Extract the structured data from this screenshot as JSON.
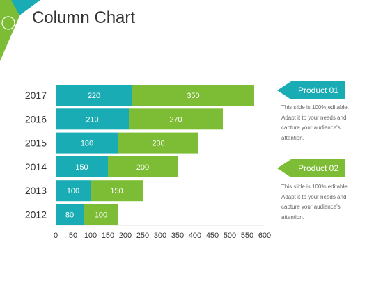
{
  "slide": {
    "title": "Column Chart",
    "accent_teal": "#1aacb5",
    "accent_green": "#7cbd35"
  },
  "callouts": [
    {
      "label": "Product 01",
      "color": "#1aacb5",
      "description": [
        "This slide is 100% editable.",
        "Adapt it to your needs and",
        "capture your audience's",
        "attention."
      ]
    },
    {
      "label": "Product 02",
      "color": "#7cbd35",
      "description": [
        "This slide is 100% editable.",
        "Adapt it to your needs and",
        "capture your audience's",
        "attention."
      ]
    }
  ],
  "chart_data": {
    "type": "bar",
    "orientation": "horizontal",
    "stacked": true,
    "categories": [
      "2017",
      "2016",
      "2015",
      "2014",
      "2013",
      "2012"
    ],
    "series": [
      {
        "name": "Product 01",
        "color": "#1aacb5",
        "values": [
          220,
          210,
          180,
          150,
          100,
          80
        ]
      },
      {
        "name": "Product 02",
        "color": "#7cbd35",
        "values": [
          350,
          270,
          230,
          200,
          150,
          100
        ]
      }
    ],
    "xlim": [
      0,
      600
    ],
    "xticks": [
      0,
      50,
      100,
      150,
      200,
      250,
      300,
      350,
      400,
      450,
      500,
      550,
      600
    ],
    "grid": false,
    "data_labels": true
  }
}
